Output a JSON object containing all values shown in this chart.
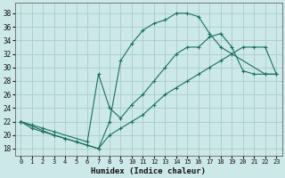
{
  "xlabel": "Humidex (Indice chaleur)",
  "bg_color": "#cce8e8",
  "grid_color": "#aacccc",
  "line_color": "#1a7060",
  "xlim": [
    -0.5,
    23.5
  ],
  "ylim": [
    17,
    39.5
  ],
  "yticks": [
    18,
    20,
    22,
    24,
    26,
    28,
    30,
    32,
    34,
    36,
    38
  ],
  "xticks": [
    0,
    1,
    2,
    3,
    4,
    5,
    6,
    7,
    8,
    9,
    10,
    11,
    12,
    13,
    14,
    15,
    16,
    17,
    18,
    19,
    20,
    21,
    22,
    23
  ],
  "curve1_x": [
    0,
    1,
    2,
    3,
    4,
    5,
    6,
    7,
    8,
    9,
    10,
    11,
    12,
    13,
    14,
    15,
    16,
    17,
    18,
    22,
    23
  ],
  "curve1_y": [
    22,
    21,
    20.5,
    20,
    19.5,
    19,
    18.5,
    18,
    22,
    31,
    33.5,
    35.5,
    36.5,
    37,
    38,
    38,
    37.5,
    35,
    33,
    29,
    29
  ],
  "curve2_x": [
    0,
    1,
    2,
    3,
    6,
    7,
    8,
    9,
    10,
    11,
    12,
    13,
    14,
    15,
    16,
    17,
    18,
    19,
    20,
    21,
    22,
    23
  ],
  "curve2_y": [
    22,
    21.5,
    21,
    20.5,
    19,
    29,
    24,
    22.5,
    24.5,
    26,
    28,
    30,
    32,
    33,
    33,
    34.5,
    35,
    33,
    29.5,
    29,
    29,
    29
  ],
  "curve3_x": [
    0,
    3,
    4,
    5,
    6,
    7,
    8,
    9,
    10,
    11,
    12,
    13,
    14,
    15,
    16,
    17,
    18,
    19,
    20,
    21,
    22,
    23
  ],
  "curve3_y": [
    22,
    20,
    19.5,
    19,
    18.5,
    18,
    20,
    21,
    22,
    23,
    24.5,
    26,
    27,
    28,
    29,
    30,
    31,
    32,
    33,
    33,
    33,
    29
  ]
}
